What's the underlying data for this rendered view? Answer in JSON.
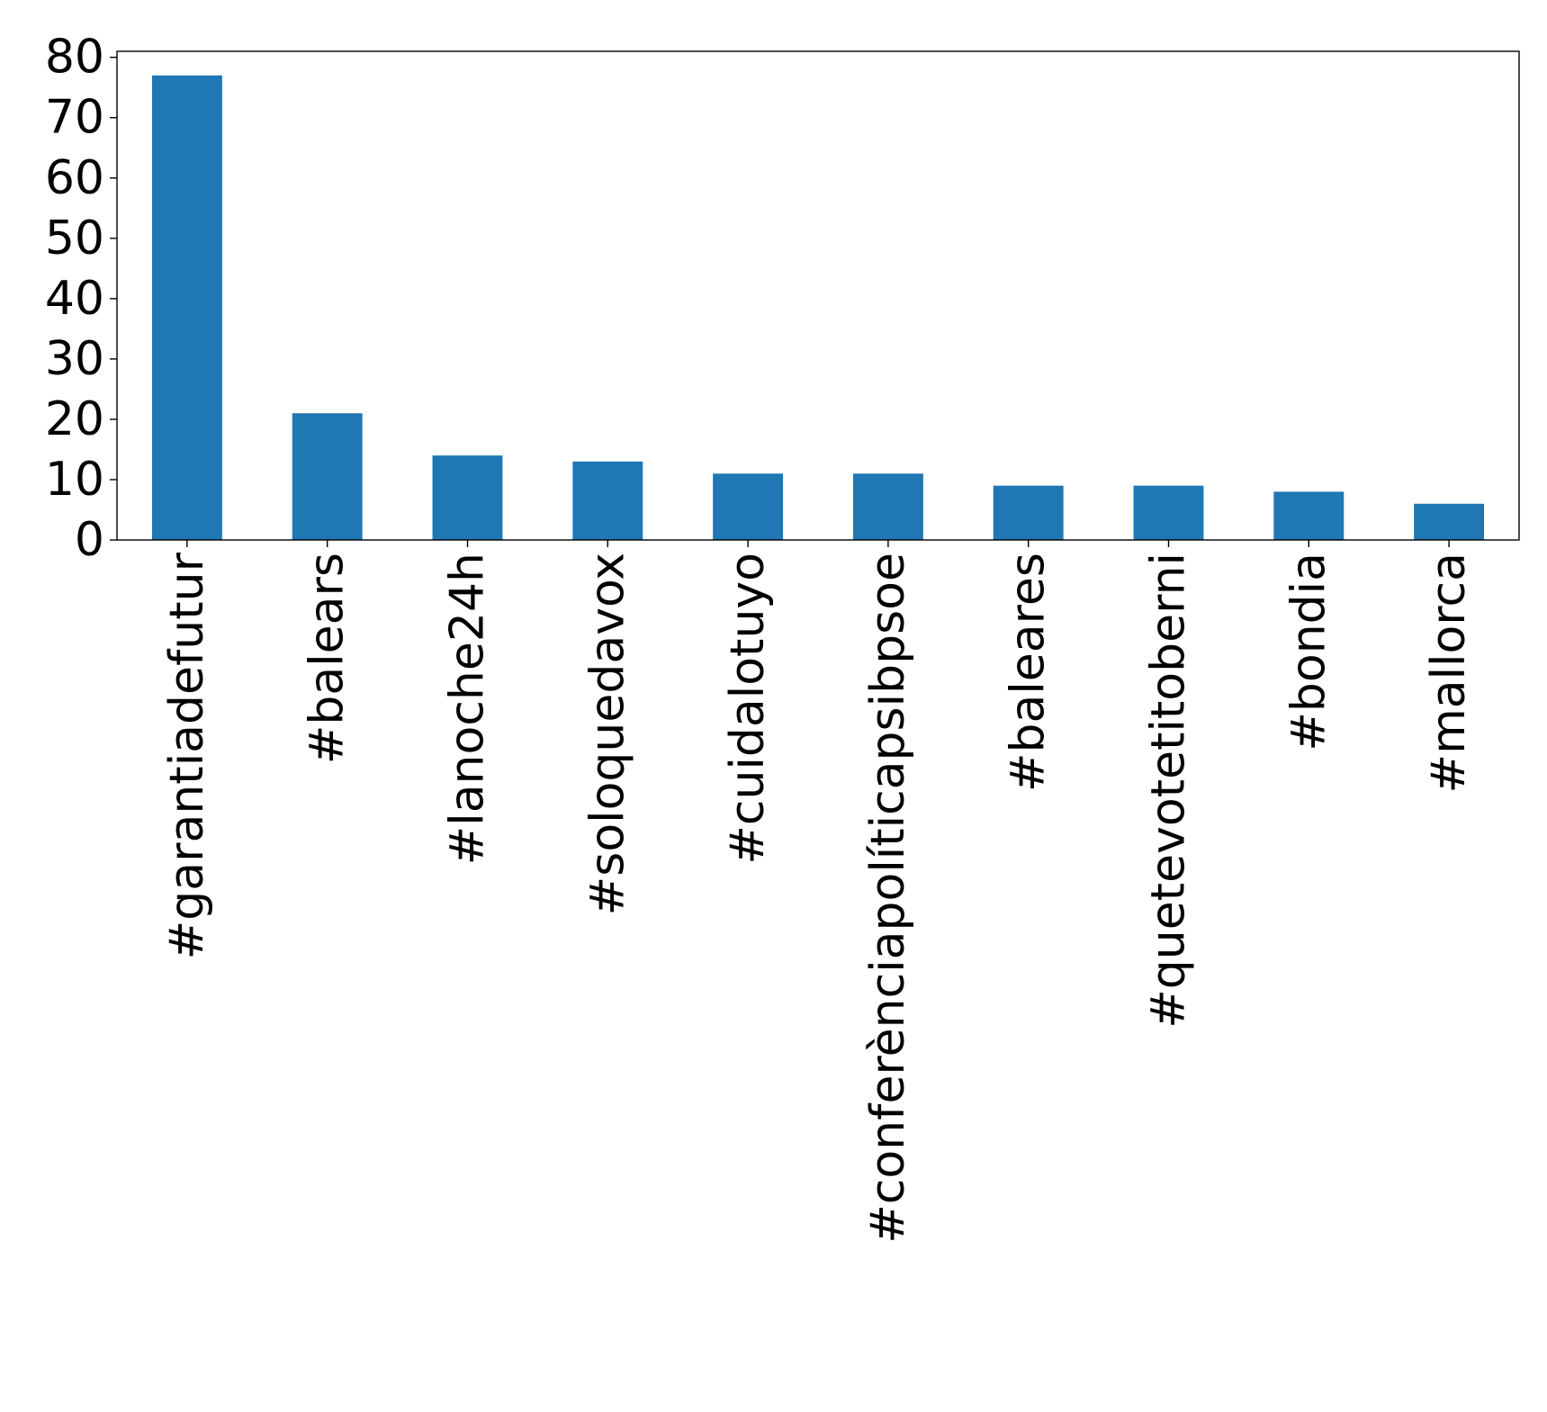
{
  "chart_data": {
    "type": "bar",
    "title": "",
    "xlabel": "",
    "ylabel": "",
    "categories": [
      "#garantiadefutur",
      "#balears",
      "#lanoche24h",
      "#soloquedavox",
      "#cuidalotuyo",
      "#conferènciapolíticapsibpsoe",
      "#baleares",
      "#quetevotetitoberni",
      "#bondia",
      "#mallorca"
    ],
    "values": [
      77,
      21,
      14,
      13,
      11,
      11,
      9,
      9,
      8,
      6
    ],
    "ylim": [
      0,
      81
    ],
    "yticks": [
      0,
      10,
      20,
      30,
      40,
      50,
      60,
      70,
      80
    ],
    "ytick_labels": [
      "0",
      "10",
      "20",
      "30",
      "40",
      "50",
      "60",
      "70",
      "80"
    ],
    "bar_color": "#1f77b4",
    "grid": false,
    "legend": "none"
  }
}
